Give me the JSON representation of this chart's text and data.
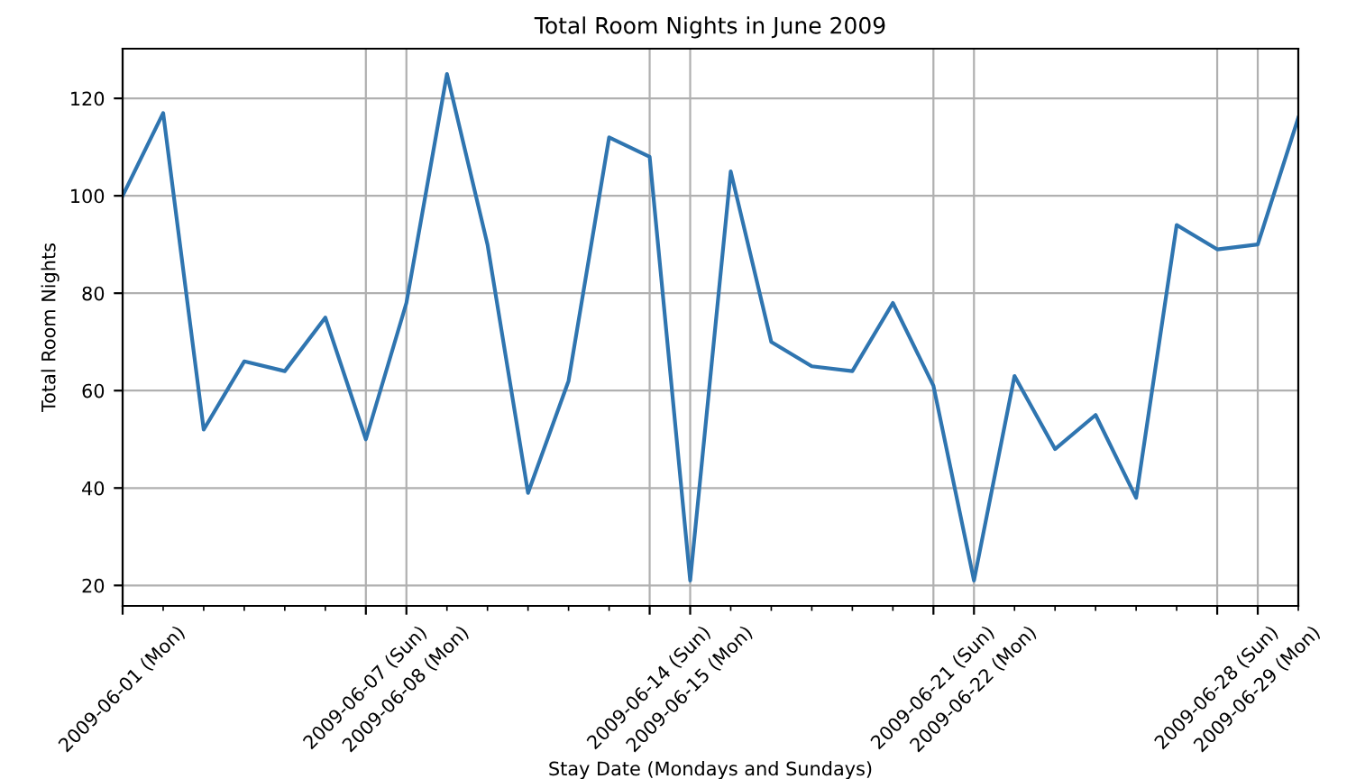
{
  "chart_data": {
    "type": "line",
    "title": "Total Room Nights in June 2009",
    "xlabel": "Stay Date (Mondays and Sundays)",
    "ylabel": "Total Room Nights",
    "x": [
      "2009-06-01",
      "2009-06-02",
      "2009-06-03",
      "2009-06-04",
      "2009-06-05",
      "2009-06-06",
      "2009-06-07",
      "2009-06-08",
      "2009-06-09",
      "2009-06-10",
      "2009-06-11",
      "2009-06-12",
      "2009-06-13",
      "2009-06-14",
      "2009-06-15",
      "2009-06-16",
      "2009-06-17",
      "2009-06-18",
      "2009-06-19",
      "2009-06-20",
      "2009-06-21",
      "2009-06-22",
      "2009-06-23",
      "2009-06-24",
      "2009-06-25",
      "2009-06-26",
      "2009-06-27",
      "2009-06-28",
      "2009-06-29",
      "2009-06-30"
    ],
    "series": [
      {
        "color": "#2f75b0",
        "values": [
          100,
          117,
          52,
          66,
          64,
          75,
          50,
          78,
          125,
          90,
          39,
          62,
          112,
          108,
          21,
          105,
          70,
          65,
          64,
          78,
          61,
          21,
          63,
          48,
          55,
          38,
          94,
          89,
          90,
          116
        ]
      }
    ],
    "xlim": [
      "2009-06-01",
      "2009-06-30"
    ],
    "xticks": [
      {
        "value": "2009-06-01",
        "label": "2009-06-01 (Mon)"
      },
      {
        "value": "2009-06-07",
        "label": "2009-06-07 (Sun)"
      },
      {
        "value": "2009-06-08",
        "label": "2009-06-08 (Mon)"
      },
      {
        "value": "2009-06-14",
        "label": "2009-06-14 (Sun)"
      },
      {
        "value": "2009-06-15",
        "label": "2009-06-15 (Mon)"
      },
      {
        "value": "2009-06-21",
        "label": "2009-06-21 (Sun)"
      },
      {
        "value": "2009-06-22",
        "label": "2009-06-22 (Mon)"
      },
      {
        "value": "2009-06-28",
        "label": "2009-06-28 (Sun)"
      },
      {
        "value": "2009-06-29",
        "label": "2009-06-29 (Mon)"
      }
    ],
    "ylim": [
      15.8,
      130.2
    ],
    "yticks": [
      20,
      40,
      60,
      80,
      100,
      120
    ],
    "grid": true,
    "line_style": "solid",
    "marker": "none"
  }
}
